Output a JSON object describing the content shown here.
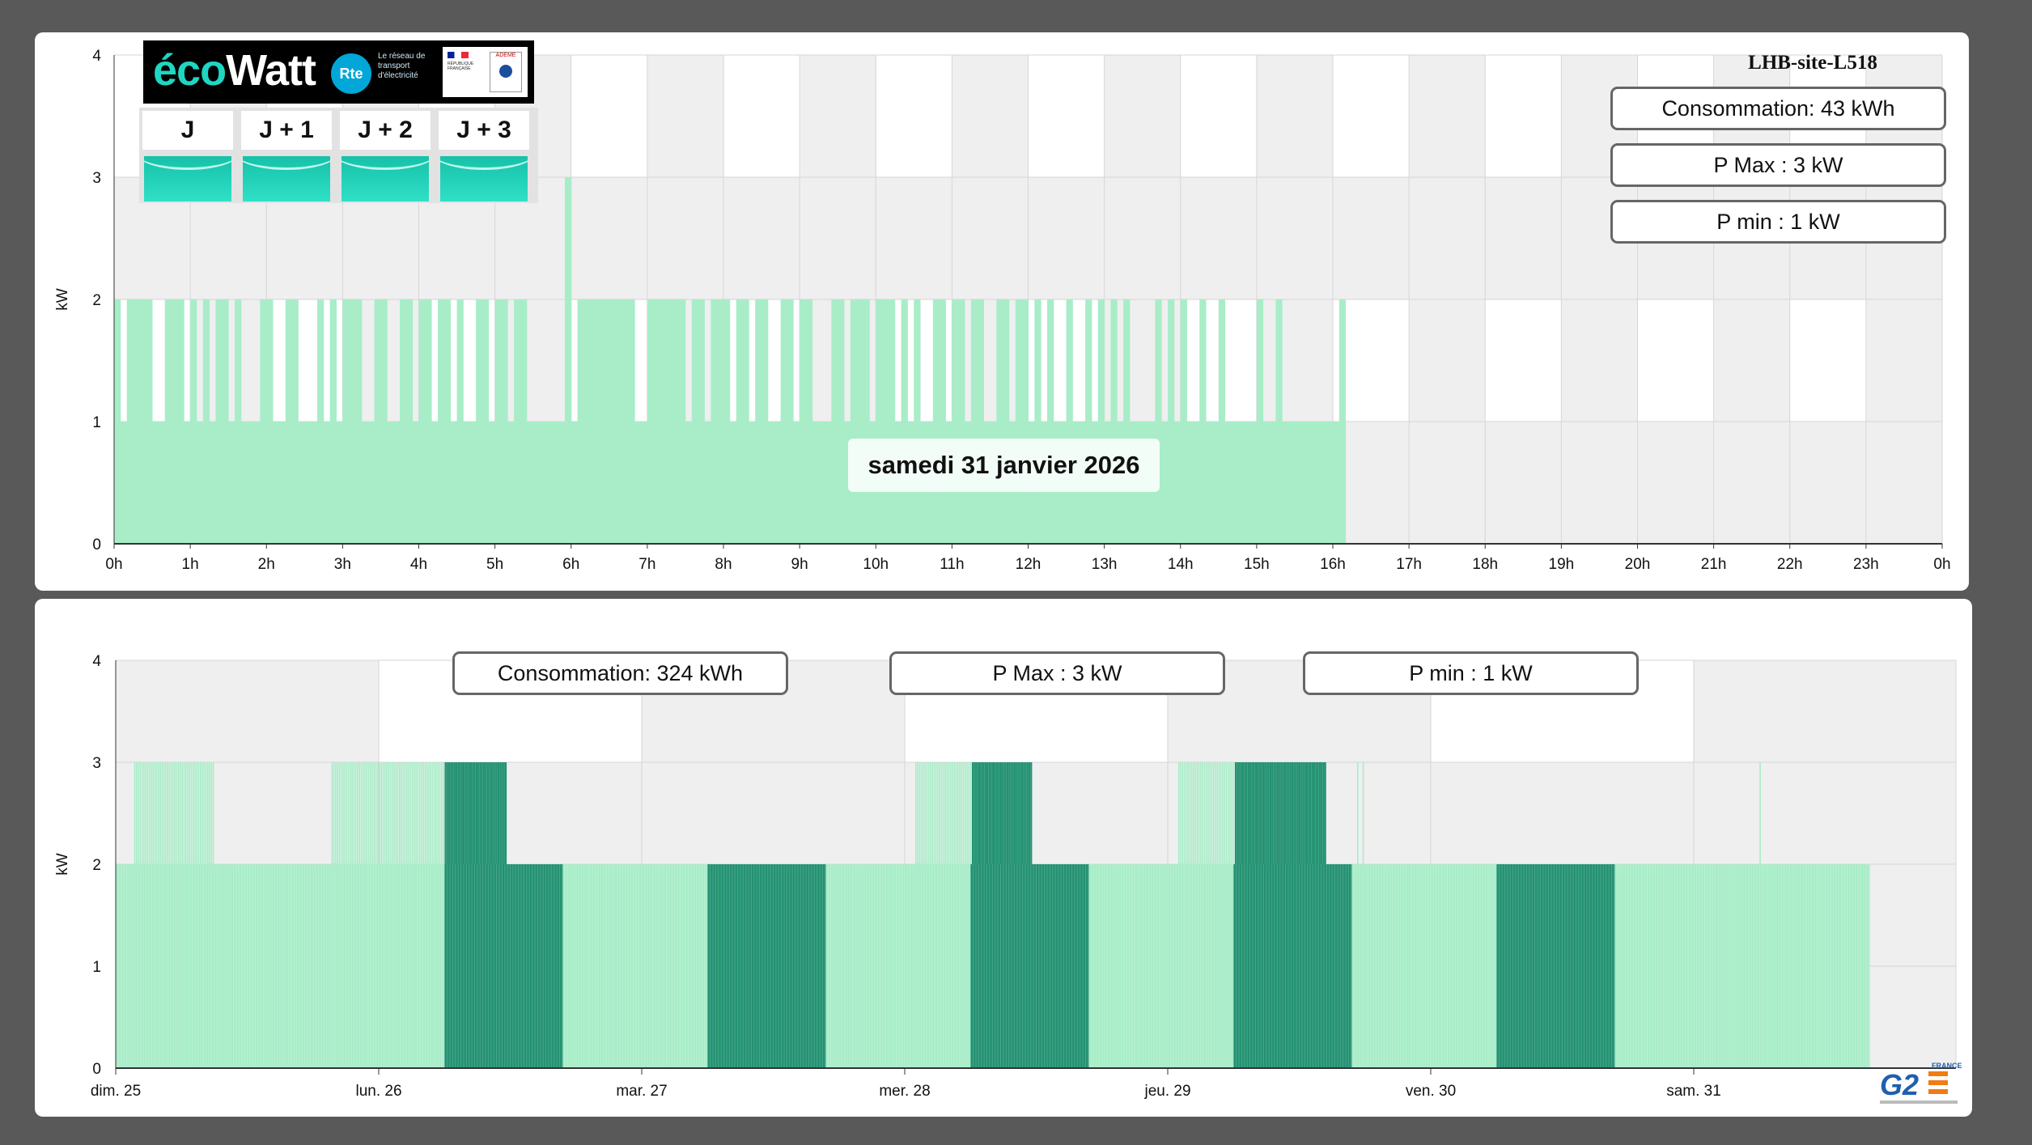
{
  "top_chart": {
    "site_name": "LHB-site-L518",
    "date_label": "samedi 31 janvier 2026",
    "consumption_label": "Consommation: 43 kWh",
    "pmax_label": "P Max :  3 kW",
    "pmin_label": "P min : 1 kW"
  },
  "ecowatt": {
    "logo_eco": "éco",
    "logo_watt": "Watt",
    "rte_name": "Rte",
    "rte_text": "Le réseau de transport d'électricité",
    "rf_text": "RÉPUBLIQUE FRANÇAISE",
    "ademe_text": "ADEME",
    "days": [
      {
        "label": "J",
        "status": "green",
        "color": "#1dcfb6"
      },
      {
        "label": "J + 1",
        "status": "green",
        "color": "#1dcfb6"
      },
      {
        "label": "J + 2",
        "status": "green",
        "color": "#1dcfb6"
      },
      {
        "label": "J + 3",
        "status": "green",
        "color": "#1dcfb6"
      }
    ]
  },
  "bottom_chart": {
    "consumption_label": "Consommation: 324 kWh",
    "pmax_label": "P Max :  3 kW",
    "pmin_label": "P min : 1 kW"
  },
  "brand": {
    "name": "G2",
    "country": "FRANCE"
  },
  "colors": {
    "bar_light": "#a8edc8",
    "bar_dark": "#239272",
    "band_grey": "#efefef",
    "band_white": "#ffffff",
    "grid": "#d6d6d6"
  },
  "chart_data": [
    {
      "type": "bar",
      "ylabel": "kW",
      "ylim": [
        0,
        4
      ],
      "yticks": [
        "0",
        "1",
        "2",
        "3",
        "4"
      ],
      "xticks": [
        "0h",
        "1h",
        "2h",
        "3h",
        "4h",
        "5h",
        "6h",
        "7h",
        "8h",
        "9h",
        "10h",
        "11h",
        "12h",
        "13h",
        "14h",
        "15h",
        "16h",
        "17h",
        "18h",
        "19h",
        "20h",
        "21h",
        "22h",
        "23h",
        "0h"
      ],
      "interval_minutes": 5,
      "data_end_hour": 16.1,
      "base_value_kw": 1,
      "peak_value_kw": 2,
      "max_value_kw": 3,
      "max_time_hour": 5.92,
      "dip_times_hour": [
        0.08,
        0.5,
        0.58,
        0.95,
        1.05,
        1.22,
        1.47,
        1.7,
        1.8,
        2.05,
        2.17,
        2.45,
        2.58,
        2.75,
        2.92,
        3.22,
        3.33,
        3.58,
        3.67,
        3.92,
        4.17,
        4.42,
        4.57,
        4.67,
        4.9,
        5.17,
        5.45,
        5.6,
        5.7,
        5.83,
        6.0,
        6.83,
        6.92,
        7.5,
        7.75,
        8.1,
        8.3,
        8.58,
        8.67,
        8.92,
        9.2,
        9.25,
        9.33,
        9.58,
        9.92,
        10.25,
        10.42,
        10.58,
        10.67,
        10.92,
        11.17,
        11.42,
        11.5,
        11.75,
        12.0,
        12.17,
        12.33,
        12.45,
        12.58,
        12.67,
        12.83,
        13.0,
        13.17,
        13.33,
        13.42,
        13.5,
        13.58,
        13.75,
        13.92,
        14.08,
        14.17,
        14.33,
        14.42,
        14.58,
        14.67,
        14.75,
        14.83,
        14.92,
        15.08,
        15.17,
        15.33,
        15.42,
        15.5,
        15.58,
        15.67,
        15.75,
        15.83,
        15.92,
        16.0
      ]
    },
    {
      "type": "bar",
      "ylabel": "kW",
      "ylim": [
        0,
        4
      ],
      "yticks": [
        "0",
        "1",
        "2",
        "3",
        "4"
      ],
      "xticks": [
        "dim. 25",
        "lun. 26",
        "mar. 27",
        "mer. 28",
        "jeu. 29",
        "ven. 30",
        "sam. 31"
      ],
      "interval_minutes": 5,
      "data_end_day": 6.67,
      "base_value_kw": 2,
      "max_value_kw": 3,
      "min_value_kw": 1,
      "dark_periods_days": [
        [
          1.25,
          1.7
        ],
        [
          2.25,
          2.7
        ],
        [
          3.25,
          3.7
        ],
        [
          4.25,
          4.7
        ],
        [
          5.25,
          5.7
        ]
      ],
      "peak_3kw_ranges_days": [
        [
          0.07,
          0.37
        ],
        [
          0.82,
          1.48
        ],
        [
          3.04,
          3.48
        ],
        [
          4.04,
          4.6
        ],
        [
          4.72,
          4.75
        ],
        [
          6.25,
          6.26
        ]
      ]
    }
  ]
}
